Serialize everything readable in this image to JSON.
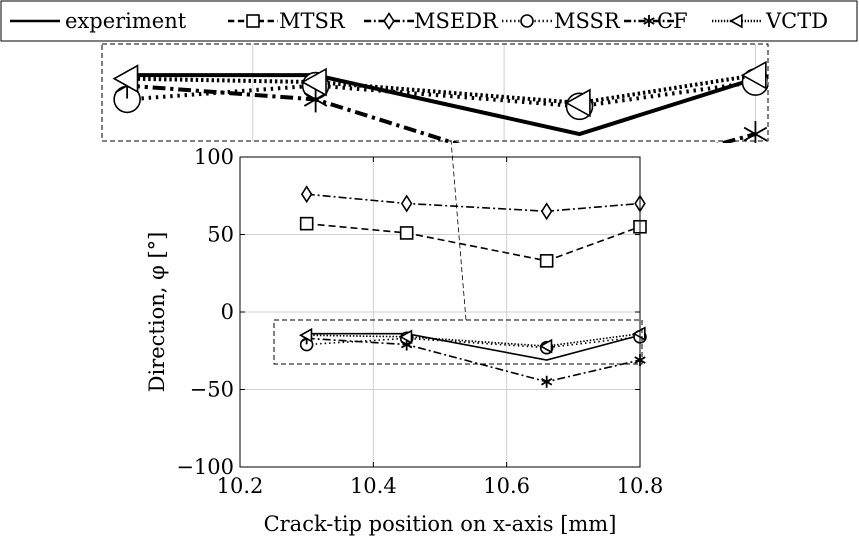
{
  "chart_data": {
    "type": "line",
    "title": "",
    "xlabel": "Crack-tip position on x-axis [mm]",
    "ylabel": "Direction, φ [°]",
    "xlim": [
      10.2,
      10.8
    ],
    "ylim": [
      -100,
      100
    ],
    "xticks": [
      10.2,
      10.4,
      10.6,
      10.8
    ],
    "yticks": [
      -100,
      -50,
      0,
      50,
      100
    ],
    "xtick_labels": [
      "10.2",
      "10.4",
      "10.6",
      "10.8"
    ],
    "ytick_labels": [
      "−100",
      "−50",
      "0",
      "50",
      "100"
    ],
    "grid": true,
    "legend_position": "top",
    "inset": {
      "type": "zoom",
      "position": "top",
      "xlim": [
        10.28,
        10.81
      ],
      "ylim": [
        -33,
        -5
      ]
    },
    "series": [
      {
        "name": "experiment",
        "marker": "none",
        "dash": "solid",
        "x": [
          10.3,
          10.45,
          10.66,
          10.8
        ],
        "y": [
          -14,
          -14,
          -31,
          -15
        ]
      },
      {
        "name": "MTSR",
        "marker": "square",
        "dash": "dashed",
        "x": [
          10.3,
          10.45,
          10.66,
          10.8
        ],
        "y": [
          57,
          51,
          33,
          55
        ]
      },
      {
        "name": "MSEDR",
        "marker": "diamond",
        "dash": "dashdot",
        "x": [
          10.3,
          10.45,
          10.66,
          10.8
        ],
        "y": [
          76,
          70,
          65,
          70
        ]
      },
      {
        "name": "MSSR",
        "marker": "circle",
        "dash": "dotted",
        "x": [
          10.3,
          10.45,
          10.66,
          10.8
        ],
        "y": [
          -21,
          -17,
          -23,
          -16
        ]
      },
      {
        "name": "CF",
        "marker": "asterisk",
        "dash": "dashdot",
        "x": [
          10.3,
          10.45,
          10.66,
          10.8
        ],
        "y": [
          -17,
          -21,
          -45,
          -31
        ]
      },
      {
        "name": "VCTD",
        "marker": "triangle-left",
        "dash": "densedotted",
        "x": [
          10.3,
          10.45,
          10.66,
          10.8
        ],
        "y": [
          -15,
          -16,
          -22,
          -14
        ]
      }
    ]
  }
}
